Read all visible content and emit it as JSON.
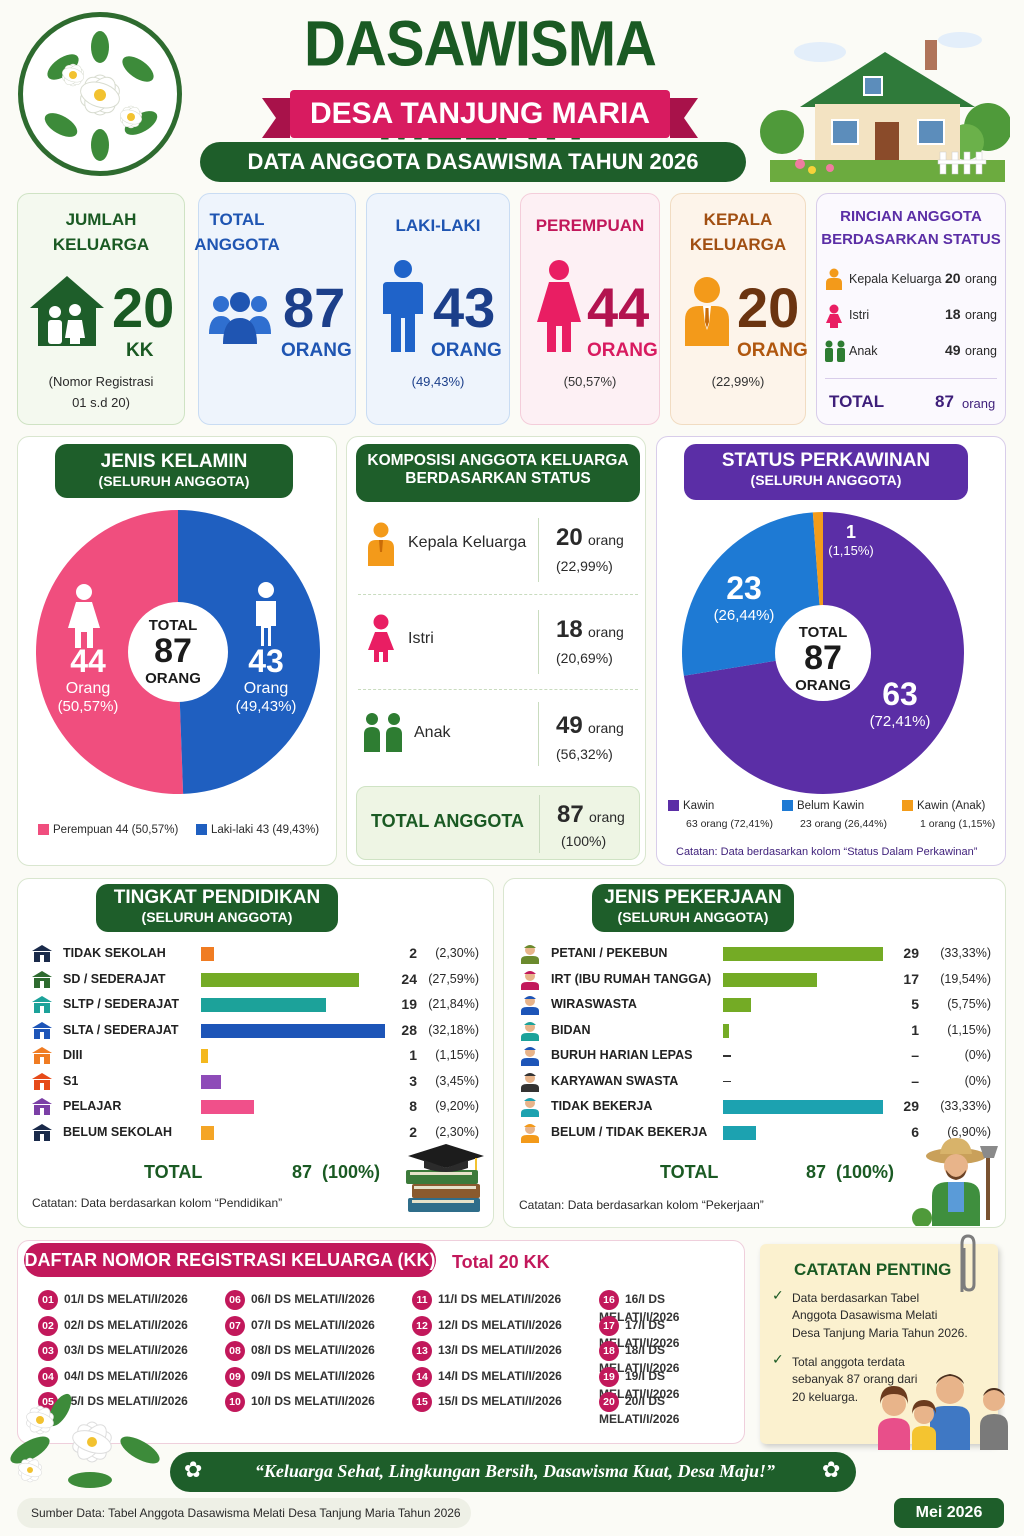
{
  "header": {
    "title": "DASAWISMA MELATI",
    "subtitle": "DESA TANJUNG MARIA",
    "tagline": "DATA ANGGOTA DASAWISMA TAHUN 2026"
  },
  "stats": {
    "jumlah_keluarga": {
      "title1": "JUMLAH",
      "title2": "KELUARGA",
      "value": "20",
      "unit": "KK",
      "note1": "(Nomor Registrasi",
      "note2": "01 s.d 20)"
    },
    "total_anggota": {
      "title1": "TOTAL",
      "title2": "ANGGOTA",
      "value": "87",
      "unit": "ORANG"
    },
    "laki_laki": {
      "title": "LAKI-LAKI",
      "value": "43",
      "unit": "ORANG",
      "pct": "(49,43%)"
    },
    "perempuan": {
      "title": "PEREMPUAN",
      "value": "44",
      "unit": "ORANG",
      "pct": "(50,57%)"
    },
    "kepala_keluarga": {
      "title1": "KEPALA",
      "title2": "KELUARGA",
      "value": "20",
      "unit": "ORANG",
      "pct": "(22,99%)"
    },
    "rincian": {
      "title1": "RINCIAN ANGGOTA",
      "title2": "BERDASARKAN STATUS",
      "rows": [
        {
          "label": "Kepala Keluarga",
          "value": "20",
          "unit": "orang"
        },
        {
          "label": "Istri",
          "value": "18",
          "unit": "orang"
        },
        {
          "label": "Anak",
          "value": "49",
          "unit": "orang"
        }
      ],
      "total_label": "TOTAL",
      "total_value": "87",
      "total_unit": "orang"
    }
  },
  "gender": {
    "title": "JENIS KELAMIN",
    "sub": "(SELURUH ANGGOTA)",
    "center_top": "TOTAL",
    "center_value": "87",
    "center_bottom": "ORANG",
    "female": {
      "value": "44",
      "unit": "Orang",
      "pct": "(50,57%)",
      "legend": "Perempuan 44 (50,57%)",
      "color": "#f04e7e"
    },
    "male": {
      "value": "43",
      "unit": "Orang",
      "pct": "(49,43%)",
      "legend": "Laki-laki 43 (49,43%)",
      "color": "#1f5fc0"
    }
  },
  "komposisi": {
    "title1": "KOMPOSISI ANGGOTA KELUARGA",
    "title2": "BERDASARKAN STATUS",
    "rows": [
      {
        "label": "Kepala Keluarga",
        "value": "20",
        "unit": "orang",
        "pct": "(22,99%)"
      },
      {
        "label": "Istri",
        "value": "18",
        "unit": "orang",
        "pct": "(20,69%)"
      },
      {
        "label": "Anak",
        "value": "49",
        "unit": "orang",
        "pct": "(56,32%)"
      }
    ],
    "total_label": "TOTAL ANGGOTA",
    "total_value": "87",
    "total_unit": "orang",
    "total_pct": "(100%)"
  },
  "perkawinan": {
    "title": "STATUS PERKAWINAN",
    "sub": "(SELURUH ANGGOTA)",
    "center_top": "TOTAL",
    "center_value": "87",
    "center_bottom": "ORANG",
    "kawin": {
      "value": "63",
      "pct": "(72,41%)",
      "legend": "Kawin",
      "legend_sub": "63 orang (72,41%)",
      "color": "#5b2ea6"
    },
    "belum": {
      "value": "23",
      "pct": "(26,44%)",
      "legend": "Belum Kawin",
      "legend_sub": "23 orang (26,44%)",
      "color": "#1e7ad4"
    },
    "anak": {
      "value": "1",
      "pct": "(1,15%)",
      "legend": "Kawin (Anak)",
      "legend_sub": "1 orang (1,15%)",
      "color": "#f39c1a"
    },
    "note": "Catatan: Data berdasarkan kolom “Status Dalam Perkawinan”"
  },
  "pendidikan": {
    "title": "TINGKAT PENDIDIKAN",
    "sub": "(SELURUH ANGGOTA)",
    "rows": [
      {
        "label": "TIDAK SEKOLAH",
        "value": 2,
        "display": "2",
        "pct": "(2,30%)",
        "color": "#f07c22"
      },
      {
        "label": "SD / SEDERAJAT",
        "value": 24,
        "display": "24",
        "pct": "(27,59%)",
        "color": "#74ab25"
      },
      {
        "label": "SLTP / SEDERAJAT",
        "value": 19,
        "display": "19",
        "pct": "(21,84%)",
        "color": "#1ca29a"
      },
      {
        "label": "SLTA / SEDERAJAT",
        "value": 28,
        "display": "28",
        "pct": "(32,18%)",
        "color": "#1d55b8"
      },
      {
        "label": "DIII",
        "value": 1,
        "display": "1",
        "pct": "(1,15%)",
        "color": "#f4b81e"
      },
      {
        "label": "S1",
        "value": 3,
        "display": "3",
        "pct": "(3,45%)",
        "color": "#8e4bb8"
      },
      {
        "label": "PELAJAR",
        "value": 8,
        "display": "8",
        "pct": "(9,20%)",
        "color": "#f0508a"
      },
      {
        "label": "BELUM SEKOLAH",
        "value": 2,
        "display": "2",
        "pct": "(2,30%)",
        "color": "#f4a526"
      }
    ],
    "total_label": "TOTAL",
    "total_value": "87  (100%)",
    "note": "Catatan: Data berdasarkan kolom “Pendidikan”"
  },
  "pekerjaan": {
    "title": "JENIS PEKERJAAN",
    "sub": "(SELURUH ANGGOTA)",
    "rows": [
      {
        "label": "PETANI / PEKEBUN",
        "value": 29,
        "display": "29",
        "pct": "(33,33%)",
        "color": "#74ab25"
      },
      {
        "label": "IRT (IBU RUMAH TANGGA)",
        "value": 17,
        "display": "17",
        "pct": "(19,54%)",
        "color": "#74ab25"
      },
      {
        "label": "WIRASWASTA",
        "value": 5,
        "display": "5",
        "pct": "(5,75%)",
        "color": "#74ab25"
      },
      {
        "label": "BIDAN",
        "value": 1,
        "display": "1",
        "pct": "(1,15%)",
        "color": "#74ab25"
      },
      {
        "label": "BURUH HARIAN LEPAS",
        "value": 0,
        "display": "–",
        "pct": "(0%)",
        "color": "#74ab25"
      },
      {
        "label": "KARYAWAN SWASTA",
        "value": 0,
        "display": "–",
        "pct": "(0%)",
        "color": "#74ab25"
      },
      {
        "label": "TIDAK BEKERJA",
        "value": 29,
        "display": "29",
        "pct": "(33,33%)",
        "color": "#1ca2b0"
      },
      {
        "label": "BELUM / TIDAK BEKERJA",
        "value": 6,
        "display": "6",
        "pct": "(6,90%)",
        "color": "#1ca2b0"
      }
    ],
    "total_label": "TOTAL",
    "total_value": "87  (100%)",
    "note": "Catatan: Data berdasarkan kolom “Pekerjaan”"
  },
  "registrasi": {
    "title": "DAFTAR NOMOR REGISTRASI KELUARGA (KK)",
    "total": "Total 20 KK",
    "items": [
      {
        "n": "01",
        "code": "01/I DS MELATI/I/2026"
      },
      {
        "n": "02",
        "code": "02/I DS MELATI/I/2026"
      },
      {
        "n": "03",
        "code": "03/I DS MELATI/I/2026"
      },
      {
        "n": "04",
        "code": "04/I DS MELATI/I/2026"
      },
      {
        "n": "05",
        "code": "05/I DS MELATI/I/2026"
      },
      {
        "n": "06",
        "code": "06/I DS MELATI/I/2026"
      },
      {
        "n": "07",
        "code": "07/I DS MELATI/I/2026"
      },
      {
        "n": "08",
        "code": "08/I DS MELATI/I/2026"
      },
      {
        "n": "09",
        "code": "09/I DS MELATI/I/2026"
      },
      {
        "n": "10",
        "code": "10/I DS MELATI/I/2026"
      },
      {
        "n": "11",
        "code": "11/I DS MELATI/I/2026"
      },
      {
        "n": "12",
        "code": "12/I DS MELATI/I/2026"
      },
      {
        "n": "13",
        "code": "13/I DS MELATI/I/2026"
      },
      {
        "n": "14",
        "code": "14/I DS MELATI/I/2026"
      },
      {
        "n": "15",
        "code": "15/I DS MELATI/I/2026"
      },
      {
        "n": "16",
        "code": "16/I DS MELATI/I/2026"
      },
      {
        "n": "17",
        "code": "17/I DS MELATI/I/2026"
      },
      {
        "n": "18",
        "code": "18/I DS MELATI/I/2026"
      },
      {
        "n": "19",
        "code": "19/I DS MELATI/I/2026"
      },
      {
        "n": "20",
        "code": "20/I DS MELATI/I/2026"
      }
    ]
  },
  "catatan": {
    "title": "CATATAN PENTING",
    "items": [
      [
        "Data berdasarkan Tabel",
        "Anggota Dasawisma Melati",
        "Desa Tanjung Maria Tahun 2026."
      ],
      [
        "Total anggota terdata",
        "sebanyak 87 orang dari",
        "20 keluarga."
      ]
    ]
  },
  "footer": {
    "slogan": "“Keluarga Sehat, Lingkungan Bersih, Dasawisma Kuat, Desa Maju!”",
    "source": "Sumber Data: Tabel Anggota Dasawisma Melati Desa Tanjung Maria Tahun 2026",
    "date": "Mei 2026"
  }
}
